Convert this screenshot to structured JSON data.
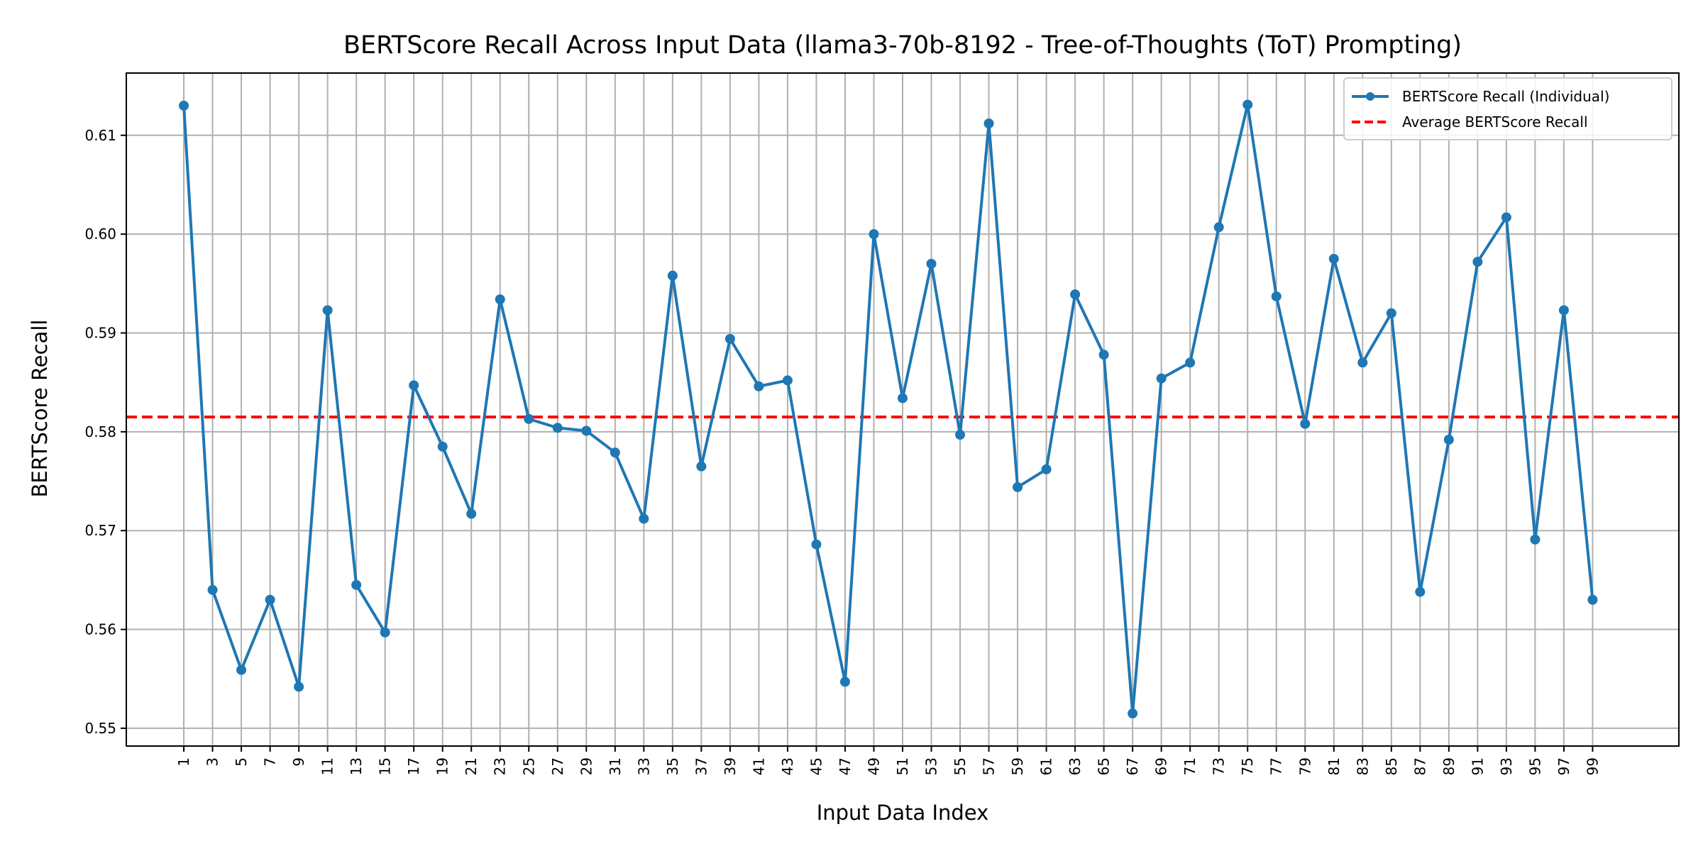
{
  "chart_data": {
    "type": "line",
    "title": "BERTScore Recall Across Input Data (llama3-70b-8192 - Tree-of-Thoughts (ToT) Prompting)",
    "xlabel": "Input Data Index",
    "ylabel": "BERTScore Recall",
    "xlim": [
      -3,
      105
    ],
    "ylim": [
      0.5482,
      0.6163
    ],
    "grid": true,
    "legend_position": "top-right",
    "x_ticks": [
      1,
      3,
      5,
      7,
      9,
      11,
      13,
      15,
      17,
      19,
      21,
      23,
      25,
      27,
      29,
      31,
      33,
      35,
      37,
      39,
      41,
      43,
      45,
      47,
      49,
      51,
      53,
      55,
      57,
      59,
      61,
      63,
      65,
      67,
      69,
      71,
      73,
      75,
      77,
      79,
      81,
      83,
      85,
      87,
      89,
      91,
      93,
      95,
      97,
      99
    ],
    "x_tick_labels": [
      "1",
      "3",
      "5",
      "7",
      "9",
      "11",
      "13",
      "15",
      "17",
      "19",
      "21",
      "23",
      "25",
      "27",
      "29",
      "31",
      "33",
      "35",
      "37",
      "39",
      "41",
      "43",
      "45",
      "47",
      "49",
      "51",
      "53",
      "55",
      "57",
      "59",
      "61",
      "63",
      "65",
      "67",
      "69",
      "71",
      "73",
      "75",
      "77",
      "79",
      "81",
      "83",
      "85",
      "87",
      "89",
      "91",
      "93",
      "95",
      "97",
      "99"
    ],
    "y_ticks": [
      0.55,
      0.56,
      0.57,
      0.58,
      0.59,
      0.6,
      0.61
    ],
    "y_tick_labels": [
      "0.55",
      "0.56",
      "0.57",
      "0.58",
      "0.59",
      "0.60",
      "0.61"
    ],
    "series": [
      {
        "name": "BERTScore Recall (Individual)",
        "color": "#1f77b4",
        "style": "line-marker",
        "x": [
          1,
          3,
          5,
          7,
          9,
          11,
          13,
          15,
          17,
          19,
          21,
          23,
          25,
          27,
          29,
          31,
          33,
          35,
          37,
          39,
          41,
          43,
          45,
          47,
          49,
          51,
          53,
          55,
          57,
          59,
          61,
          63,
          65,
          67,
          69,
          71,
          73,
          75,
          77,
          79,
          81,
          83,
          85,
          87,
          89,
          91,
          93,
          95,
          97,
          99
        ],
        "values": [
          0.613,
          0.564,
          0.5559,
          0.563,
          0.5542,
          0.5923,
          0.5645,
          0.5597,
          0.5847,
          0.5785,
          0.5717,
          0.5934,
          0.5813,
          0.5804,
          0.5801,
          0.5779,
          0.5712,
          0.5958,
          0.5765,
          0.5894,
          0.5846,
          0.5852,
          0.5686,
          0.5547,
          0.6,
          0.5834,
          0.597,
          0.5797,
          0.6112,
          0.5744,
          0.5762,
          0.5939,
          0.5878,
          0.5515,
          0.5854,
          0.587,
          0.6007,
          0.6131,
          0.5937,
          0.5808,
          0.5975,
          0.587,
          0.592,
          0.5638,
          0.5792,
          0.5972,
          0.6017,
          0.5691,
          0.5923,
          0.563
        ]
      },
      {
        "name": "Average BERTScore Recall",
        "color": "#ff0000",
        "style": "dashed",
        "value": 0.5815
      }
    ]
  }
}
